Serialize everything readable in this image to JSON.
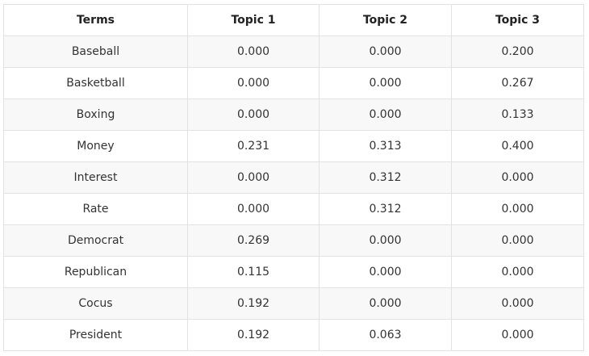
{
  "table": {
    "headers": [
      "Terms",
      "Topic 1",
      "Topic 2",
      "Topic 3"
    ],
    "rows": [
      [
        "Baseball",
        "0.000",
        "0.000",
        "0.200"
      ],
      [
        "Basketball",
        "0.000",
        "0.000",
        "0.267"
      ],
      [
        "Boxing",
        "0.000",
        "0.000",
        "0.133"
      ],
      [
        "Money",
        "0.231",
        "0.313",
        "0.400"
      ],
      [
        "Interest",
        "0.000",
        "0.312",
        "0.000"
      ],
      [
        "Rate",
        "0.000",
        "0.312",
        "0.000"
      ],
      [
        "Democrat",
        "0.269",
        "0.000",
        "0.000"
      ],
      [
        "Republican",
        "0.115",
        "0.000",
        "0.000"
      ],
      [
        "Cocus",
        "0.192",
        "0.000",
        "0.000"
      ],
      [
        "President",
        "0.192",
        "0.063",
        "0.000"
      ]
    ]
  }
}
